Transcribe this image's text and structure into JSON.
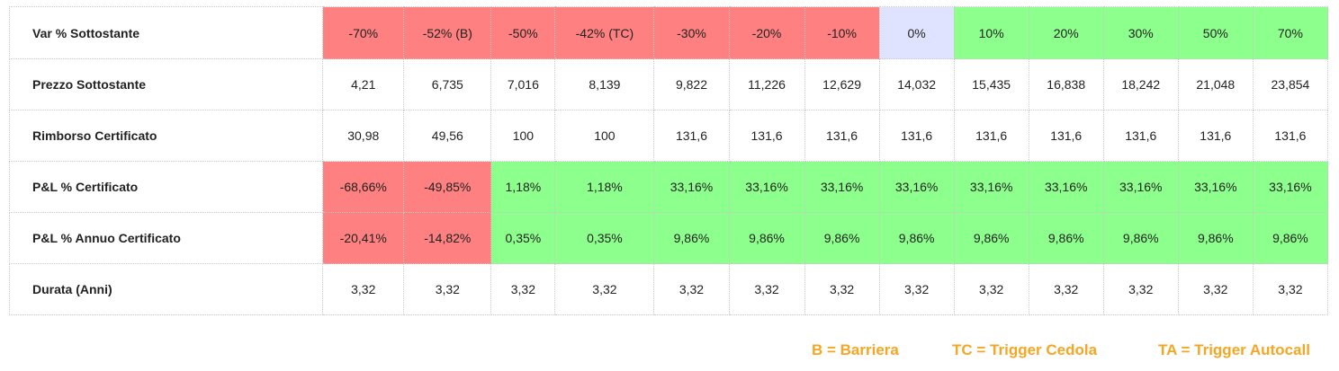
{
  "rows": [
    {
      "label": "Var % Sottostante",
      "cells": [
        "-70%",
        "-52% (B)",
        "-50%",
        "-42% (TC)",
        "-30%",
        "-20%",
        "-10%",
        "0%",
        "10%",
        "20%",
        "30%",
        "50%",
        "70%"
      ],
      "colors": [
        "red",
        "red",
        "red",
        "red",
        "red",
        "red",
        "red",
        "lav",
        "green",
        "green",
        "green",
        "green",
        "green"
      ]
    },
    {
      "label": "Prezzo Sottostante",
      "cells": [
        "4,21",
        "6,735",
        "7,016",
        "8,139",
        "9,822",
        "11,226",
        "12,629",
        "14,032",
        "15,435",
        "16,838",
        "18,242",
        "21,048",
        "23,854"
      ],
      "colors": [
        "",
        "",
        "",
        "",
        "",
        "",
        "",
        "",
        "",
        "",
        "",
        "",
        ""
      ]
    },
    {
      "label": "Rimborso Certificato",
      "cells": [
        "30,98",
        "49,56",
        "100",
        "100",
        "131,6",
        "131,6",
        "131,6",
        "131,6",
        "131,6",
        "131,6",
        "131,6",
        "131,6",
        "131,6"
      ],
      "colors": [
        "",
        "",
        "",
        "",
        "",
        "",
        "",
        "",
        "",
        "",
        "",
        "",
        ""
      ]
    },
    {
      "label": "P&L % Certificato",
      "cells": [
        "-68,66%",
        "-49,85%",
        "1,18%",
        "1,18%",
        "33,16%",
        "33,16%",
        "33,16%",
        "33,16%",
        "33,16%",
        "33,16%",
        "33,16%",
        "33,16%",
        "33,16%"
      ],
      "colors": [
        "red",
        "red",
        "green",
        "green",
        "green",
        "green",
        "green",
        "green",
        "green",
        "green",
        "green",
        "green",
        "green"
      ]
    },
    {
      "label": "P&L % Annuo Certificato",
      "cells": [
        "-20,41%",
        "-14,82%",
        "0,35%",
        "0,35%",
        "9,86%",
        "9,86%",
        "9,86%",
        "9,86%",
        "9,86%",
        "9,86%",
        "9,86%",
        "9,86%",
        "9,86%"
      ],
      "colors": [
        "red",
        "red",
        "green",
        "green",
        "green",
        "green",
        "green",
        "green",
        "green",
        "green",
        "green",
        "green",
        "green"
      ]
    },
    {
      "label": "Durata (Anni)",
      "cells": [
        "3,32",
        "3,32",
        "3,32",
        "3,32",
        "3,32",
        "3,32",
        "3,32",
        "3,32",
        "3,32",
        "3,32",
        "3,32",
        "3,32",
        "3,32"
      ],
      "colors": [
        "",
        "",
        "",
        "",
        "",
        "",
        "",
        "",
        "",
        "",
        "",
        "",
        ""
      ]
    }
  ],
  "legend": {
    "barriera": "B = Barriera",
    "trigger_cedola": "TC = Trigger Cedola",
    "trigger_autocall": "TA = Trigger Autocall"
  }
}
